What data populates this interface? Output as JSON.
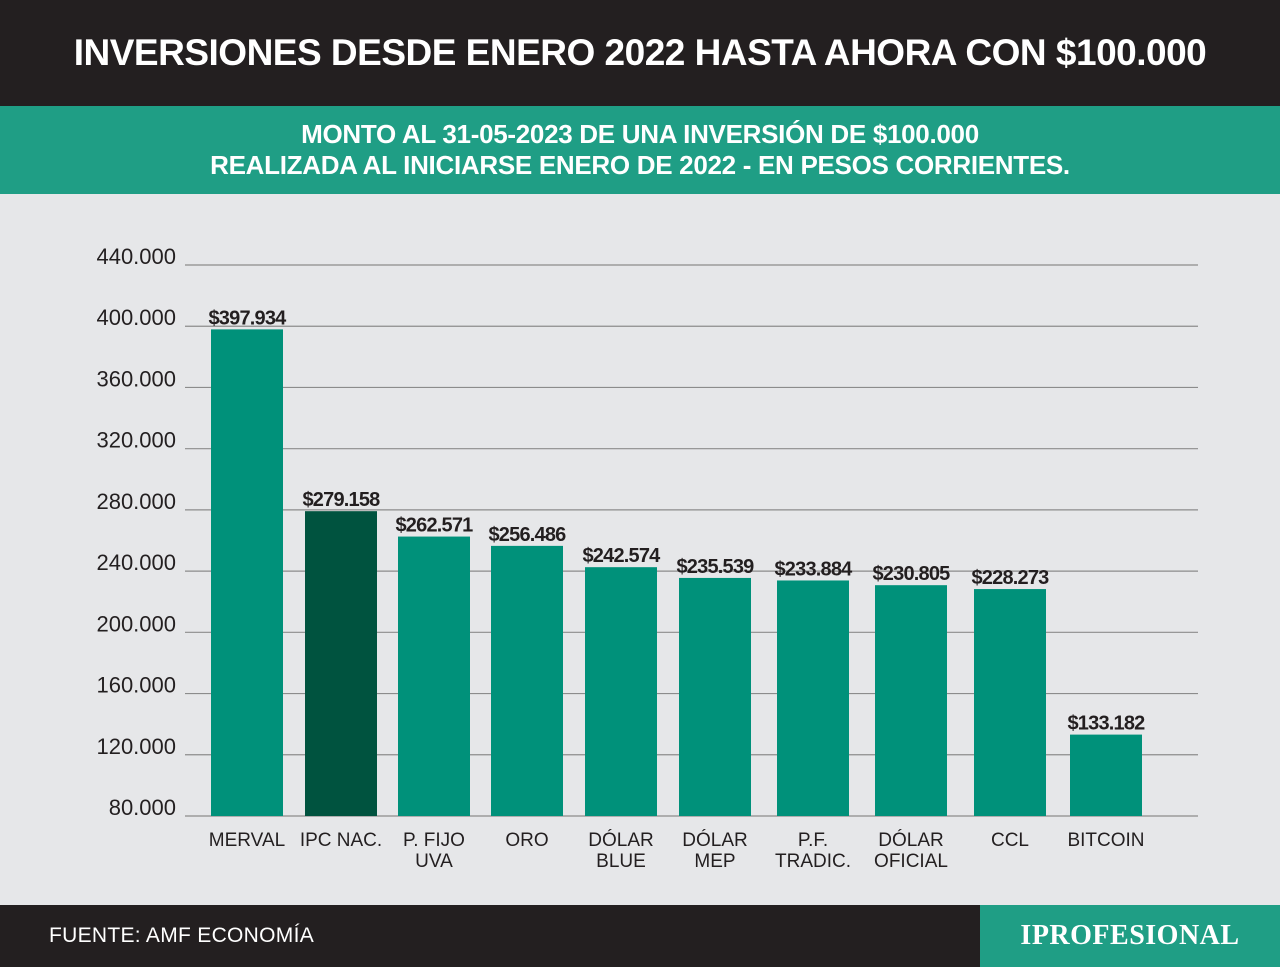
{
  "header": {
    "title": "INVERSIONES DESDE ENERO 2022 HASTA AHORA CON $100.000",
    "subtitle_line1": "MONTO AL 31-05-2023 DE UNA INVERSIÓN DE $100.000",
    "subtitle_line2": "REALIZADA AL INICIARSE ENERO DE 2022 - EN PESOS CORRIENTES."
  },
  "footer": {
    "source": "FUENTE: AMF ECONOMÍA",
    "brand": "IPROFESIONAL"
  },
  "colors": {
    "header_bg": "#231f20",
    "accent": "#1f9e85",
    "bar": "#00917a",
    "bar_highlight": "#00533f",
    "background": "#e6e7e9"
  },
  "chart_data": {
    "type": "bar",
    "categories": [
      [
        "MERVAL"
      ],
      [
        "IPC NAC."
      ],
      [
        "P. FIJO",
        "UVA"
      ],
      [
        "ORO"
      ],
      [
        "DÓLAR",
        "BLUE"
      ],
      [
        "DÓLAR",
        "MEP"
      ],
      [
        "P.F.",
        "TRADIC."
      ],
      [
        "DÓLAR",
        "OFICIAL"
      ],
      [
        "CCL"
      ],
      [
        "BITCOIN"
      ]
    ],
    "values": [
      397934,
      279158,
      262571,
      256486,
      242574,
      235539,
      233884,
      230805,
      228273,
      133182
    ],
    "value_labels": [
      "$397.934",
      "$279.158",
      "$262.571",
      "$256.486",
      "$242.574",
      "$235.539",
      "$233.884",
      "$230.805",
      "$228.273",
      "$133.182"
    ],
    "highlight_index": 1,
    "ylim": [
      80000,
      440000
    ],
    "yticks": [
      80000,
      120000,
      160000,
      200000,
      240000,
      280000,
      320000,
      360000,
      400000,
      440000
    ],
    "ytick_labels": [
      "80.000",
      "120.000",
      "160.000",
      "200.000",
      "240.000",
      "280.000",
      "320.000",
      "360.000",
      "400.000",
      "440.000"
    ],
    "grid": true,
    "legend": "none",
    "title": "",
    "xlabel": "",
    "ylabel": ""
  }
}
